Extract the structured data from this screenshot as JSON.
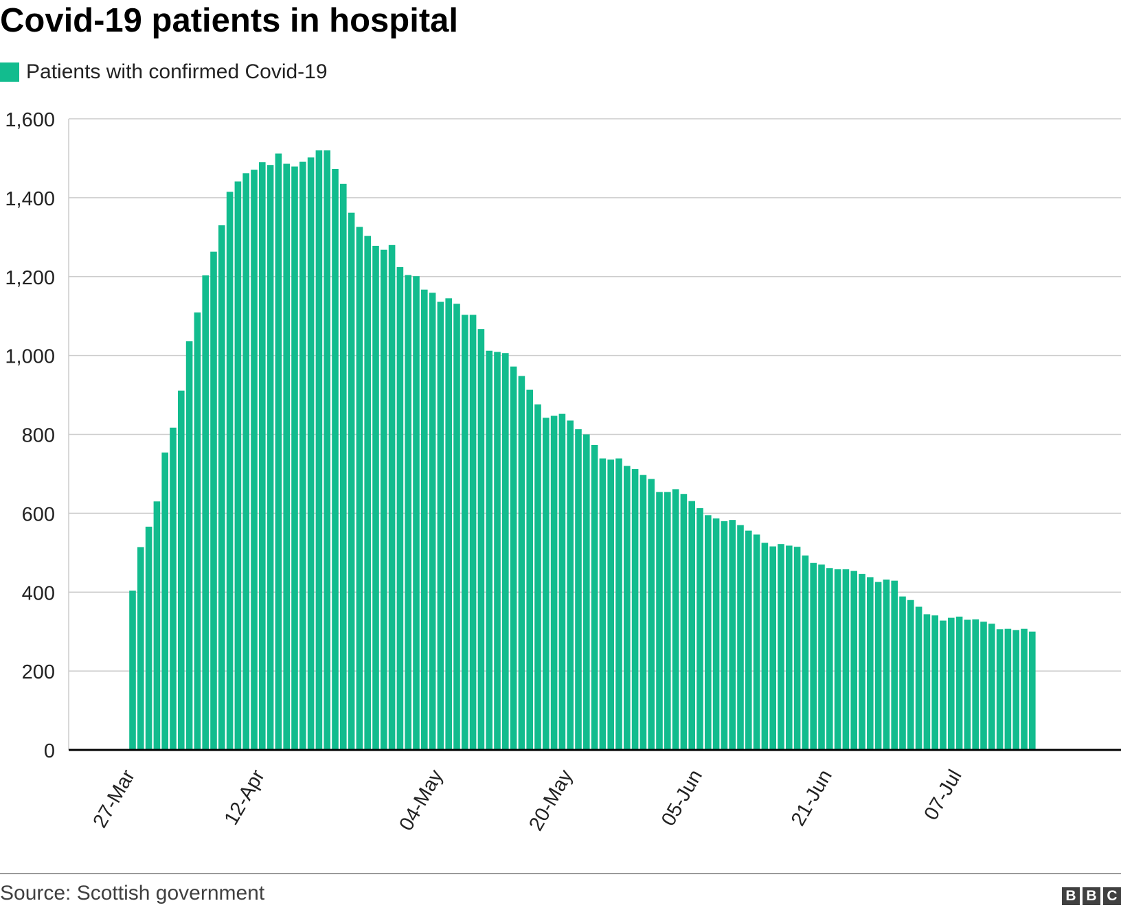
{
  "header": {
    "title": "Covid-19 patients in hospital"
  },
  "colors": {
    "bar": "#12bc8e",
    "grid": "#cccccc",
    "axis": "#000000",
    "text": "#222222"
  },
  "chart_data": {
    "type": "bar",
    "title": "Covid-19 patients in hospital",
    "xlabel": "",
    "ylabel": "",
    "ylim": [
      0,
      1600
    ],
    "yticks": [
      0,
      200,
      400,
      600,
      800,
      1000,
      1200,
      1400,
      1600
    ],
    "ytick_labels": [
      "0",
      "200",
      "400",
      "600",
      "800",
      "1,000",
      "1,200",
      "1,400",
      "1,600"
    ],
    "grid": true,
    "legend": "top-left",
    "x_start": "27-Mar",
    "x_end": "17-Jul",
    "xtick_labels": [
      "27-Mar",
      "12-Apr",
      "04-May",
      "20-May",
      "05-Jun",
      "21-Jun",
      "07-Jul"
    ],
    "xtick_dates": [
      "2020-03-27",
      "2020-04-12",
      "2020-05-04",
      "2020-05-20",
      "2020-06-05",
      "2020-06-21",
      "2020-07-07"
    ],
    "series": [
      {
        "name": "Patients with confirmed Covid-19",
        "color": "#12bc8e",
        "values": [
          404,
          514,
          566,
          630,
          754,
          817,
          911,
          1036,
          1109,
          1203,
          1263,
          1330,
          1415,
          1441,
          1462,
          1471,
          1490,
          1483,
          1512,
          1486,
          1479,
          1491,
          1502,
          1520,
          1520,
          1473,
          1435,
          1362,
          1326,
          1303,
          1278,
          1268,
          1280,
          1224,
          1204,
          1201,
          1167,
          1159,
          1136,
          1145,
          1131,
          1103,
          1103,
          1067,
          1012,
          1009,
          1006,
          972,
          948,
          913,
          876,
          842,
          847,
          852,
          835,
          813,
          800,
          773,
          739,
          736,
          739,
          720,
          712,
          697,
          687,
          654,
          654,
          661,
          649,
          631,
          613,
          595,
          587,
          580,
          583,
          570,
          556,
          546,
          525,
          516,
          522,
          518,
          515,
          493,
          474,
          470,
          461,
          458,
          458,
          454,
          446,
          438,
          426,
          432,
          429,
          389,
          380,
          363,
          344,
          341,
          328,
          335,
          338,
          330,
          331,
          325,
          320,
          306,
          307,
          304,
          307,
          300
        ]
      }
    ]
  },
  "footer": {
    "source": "Source: Scottish government",
    "brand_letters": [
      "B",
      "B",
      "C"
    ]
  }
}
